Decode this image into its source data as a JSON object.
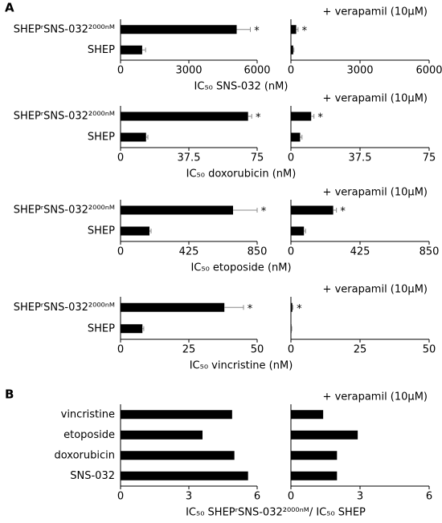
{
  "panel_labels": [
    "A",
    "B"
  ],
  "chart_data": [
    {
      "type": "bar",
      "orientation": "horizontal",
      "categories": [
        "SHEPʳSNS-032²⁰⁰⁰ⁿᴹ",
        "SHEP"
      ],
      "values": [
        5100,
        950
      ],
      "errors": [
        600,
        150
      ],
      "annotations": [
        "*",
        null
      ],
      "color": "#000000",
      "xlim": [
        0,
        6000
      ],
      "xticks": [
        0,
        3000,
        6000
      ],
      "xlabel": "IC₅₀ SNS-032 (nM)"
    },
    {
      "type": "bar",
      "orientation": "horizontal",
      "title": "+ verapamil (10μM)",
      "values": [
        230,
        100
      ],
      "errors": [
        80,
        30
      ],
      "annotations": [
        "*",
        null
      ],
      "color": "#000000",
      "xlim": [
        0,
        6000
      ],
      "xticks": [
        0,
        3000,
        6000
      ]
    },
    {
      "type": "bar",
      "orientation": "horizontal",
      "categories": [
        "SHEPʳSNS-032²⁰⁰⁰ⁿᴹ",
        "SHEP"
      ],
      "values": [
        70,
        14
      ],
      "errors": [
        2,
        1
      ],
      "annotations": [
        "*",
        null
      ],
      "color": "#000000",
      "xlim": [
        0,
        75
      ],
      "xticks": [
        0,
        37.5,
        75
      ],
      "xlabel": "IC₅₀ doxorubicin (nM)"
    },
    {
      "type": "bar",
      "orientation": "horizontal",
      "title": "+ verapamil (10μM)",
      "values": [
        11,
        5
      ],
      "errors": [
        1.5,
        1
      ],
      "annotations": [
        "*",
        null
      ],
      "color": "#000000",
      "xlim": [
        0,
        75
      ],
      "xticks": [
        0,
        37.5,
        75
      ]
    },
    {
      "type": "bar",
      "orientation": "horizontal",
      "categories": [
        "SHEPʳSNS-032²⁰⁰⁰ⁿᴹ",
        "SHEP"
      ],
      "values": [
        700,
        180
      ],
      "errors": [
        150,
        10
      ],
      "annotations": [
        "*",
        null
      ],
      "color": "#000000",
      "xlim": [
        0,
        850
      ],
      "xticks": [
        0,
        425,
        850
      ],
      "xlabel": "IC₅₀ etoposide (nM)"
    },
    {
      "type": "bar",
      "orientation": "horizontal",
      "title": "+ verapamil (10μM)",
      "values": [
        260,
        80
      ],
      "errors": [
        20,
        10
      ],
      "annotations": [
        "*",
        null
      ],
      "color": "#000000",
      "xlim": [
        0,
        850
      ],
      "xticks": [
        0,
        425,
        850
      ]
    },
    {
      "type": "bar",
      "orientation": "horizontal",
      "categories": [
        "SHEPʳSNS-032²⁰⁰⁰ⁿᴹ",
        "SHEP"
      ],
      "values": [
        38,
        8
      ],
      "errors": [
        7,
        0.5
      ],
      "annotations": [
        "*",
        null
      ],
      "color": "#000000",
      "xlim": [
        0,
        50
      ],
      "xticks": [
        0,
        25,
        50
      ],
      "xlabel": "IC₅₀ vincristine (nM)"
    },
    {
      "type": "bar",
      "orientation": "horizontal",
      "title": "+ verapamil (10μM)",
      "values": [
        0.5,
        0.2
      ],
      "errors": [
        0.2,
        0.1
      ],
      "annotations": [
        "*",
        null
      ],
      "color": "#000000",
      "xlim": [
        0,
        50
      ],
      "xticks": [
        0,
        25,
        50
      ]
    },
    {
      "type": "bar",
      "orientation": "horizontal",
      "categories": [
        "vincristine",
        "etoposide",
        "doxorubicin",
        "SNS-032"
      ],
      "values": [
        4.9,
        3.6,
        5.0,
        5.6
      ],
      "color": "#000000",
      "xlim": [
        0,
        6
      ],
      "xticks": [
        0,
        3,
        6
      ],
      "xlabel": "IC₅₀ SHEPʳSNS-032²⁰⁰⁰ⁿᴹ/ IC₅₀ SHEP"
    },
    {
      "type": "bar",
      "orientation": "horizontal",
      "title": "+ verapamil (10μM)",
      "values": [
        1.4,
        2.9,
        2.0,
        2.0
      ],
      "color": "#000000",
      "xlim": [
        0,
        6
      ],
      "xticks": [
        0,
        3,
        6
      ]
    }
  ]
}
